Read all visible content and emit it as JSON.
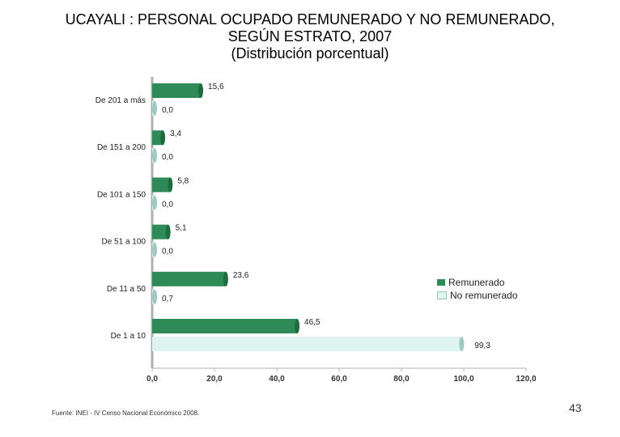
{
  "title": {
    "line1": "UCAYALI : PERSONAL OCUPADO REMUNERADO Y NO REMUNERADO,",
    "line2": "SEGÚN ESTRATO, 2007",
    "line3": "(Distribución porcentual)"
  },
  "source": "Fuente: INEI - IV Censo Nacional Económico 2008.",
  "page_number": "43",
  "colors": {
    "remunerado": "#2e8b57",
    "remunerado_dark": "#1f6b40",
    "no_remunerado": "#dff3f0",
    "no_remunerado_dark": "#9fc9c3",
    "axis": "#b0b0b0"
  },
  "chart_data": {
    "type": "bar",
    "orientation": "horizontal",
    "categories": [
      "De 201 a más",
      "De 151 a 200",
      "De 101 a 150",
      "De 51 a 100",
      "De 11 a 50",
      "De 1 a 10"
    ],
    "series": [
      {
        "name": "Remunerado",
        "values": [
          15.6,
          3.4,
          5.8,
          5.1,
          23.6,
          46.5
        ],
        "labels": [
          "15,6",
          "3,4",
          "5,8",
          "5,1",
          "23,6",
          "46,5"
        ]
      },
      {
        "name": "No remunerado",
        "values": [
          0.0,
          0.0,
          0.0,
          0.0,
          0.7,
          99.3
        ],
        "labels": [
          "0,0",
          "0,0",
          "0,0",
          "0,0",
          "0,7",
          "99,3"
        ]
      }
    ],
    "xlim": [
      0,
      120
    ],
    "xticks": [
      0,
      20,
      40,
      60,
      80,
      100,
      120
    ],
    "xtick_labels": [
      "0,0",
      "20,0",
      "40,0",
      "60,0",
      "80,0",
      "100,0",
      "120,0"
    ],
    "legend_position": "right",
    "grid": false
  }
}
